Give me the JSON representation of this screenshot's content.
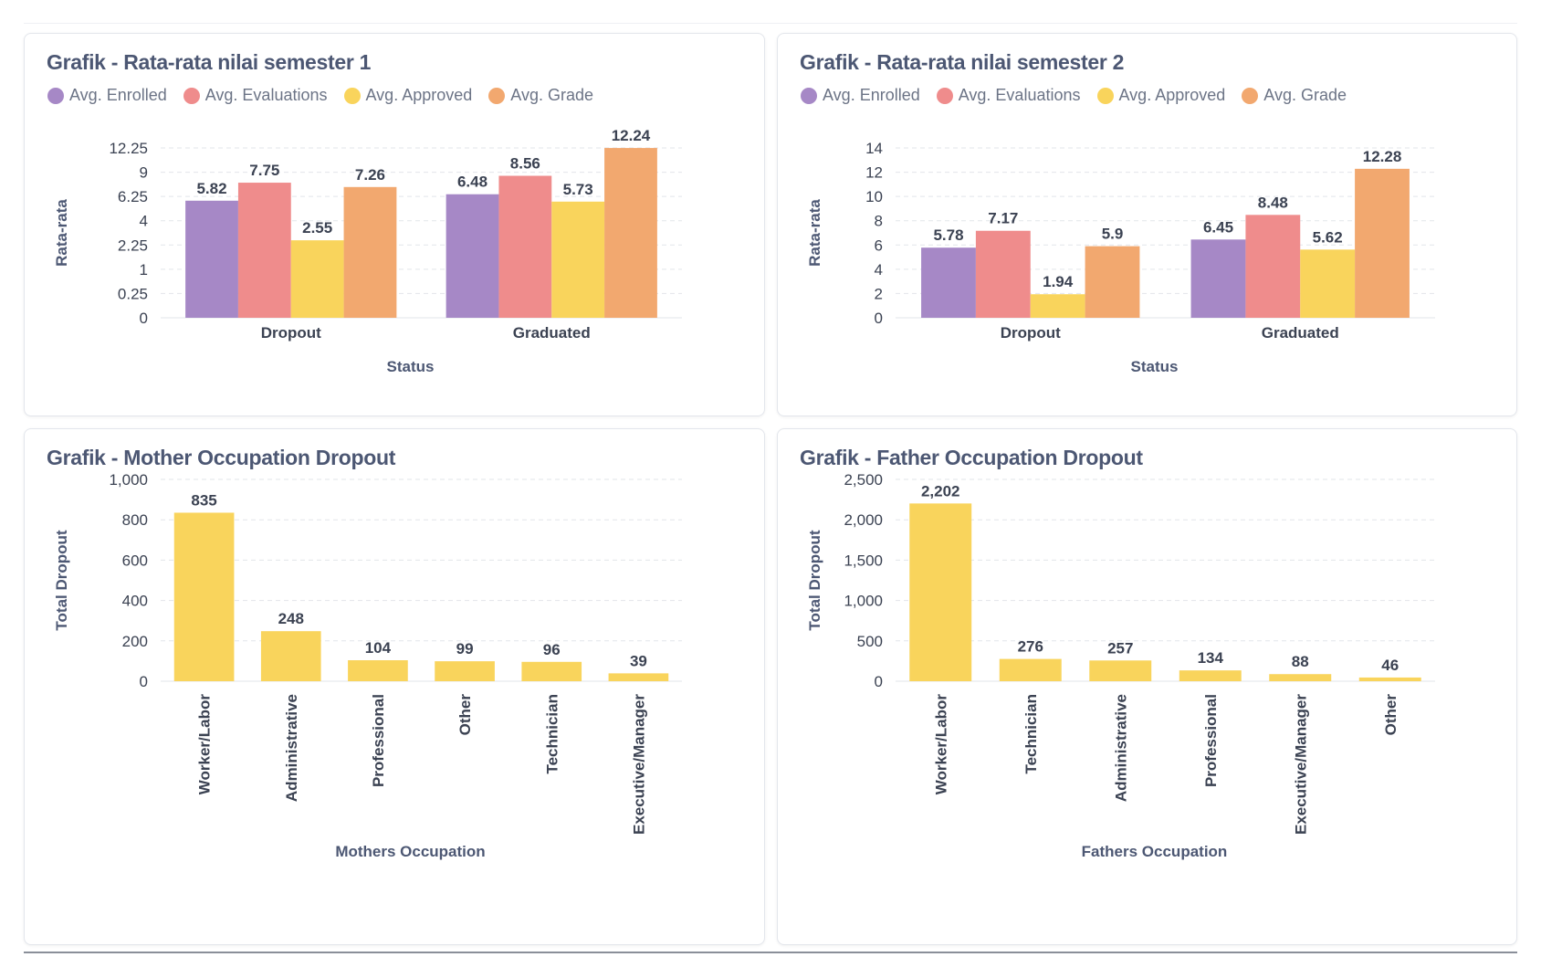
{
  "colors": {
    "enrolled": "#a688c6",
    "evaluations": "#ef8c8c",
    "approved": "#f9d45c",
    "grade": "#f2a86f",
    "gold": "#f9d45c",
    "grid": "#e2e5ea",
    "text": "#4c5773",
    "label": "#3b4252"
  },
  "cards": [
    {
      "title": "Grafik - Rata-rata nilai semester 1",
      "legend": [
        {
          "label": "Avg. Enrolled",
          "color_key": "enrolled"
        },
        {
          "label": "Avg. Evaluations",
          "color_key": "evaluations"
        },
        {
          "label": "Avg. Approved",
          "color_key": "approved"
        },
        {
          "label": "Avg. Grade",
          "color_key": "grade"
        }
      ]
    },
    {
      "title": "Grafik - Rata-rata nilai semester 2",
      "legend": [
        {
          "label": "Avg. Enrolled",
          "color_key": "enrolled"
        },
        {
          "label": "Avg. Evaluations",
          "color_key": "evaluations"
        },
        {
          "label": "Avg. Approved",
          "color_key": "approved"
        },
        {
          "label": "Avg. Grade",
          "color_key": "grade"
        }
      ]
    },
    {
      "title": "Grafik - Mother Occupation Dropout"
    },
    {
      "title": "Grafik - Father Occupation Dropout"
    }
  ],
  "chart_data": [
    {
      "type": "bar",
      "title": "Grafik - Rata-rata nilai semester 1",
      "xlabel": "Status",
      "ylabel": "Rata-rata",
      "y_scale": "pow",
      "categories": [
        "Dropout",
        "Graduated"
      ],
      "series": [
        {
          "name": "Avg. Enrolled",
          "values": [
            5.82,
            6.48
          ],
          "labels": [
            "5.82",
            "6.48"
          ]
        },
        {
          "name": "Avg. Evaluations",
          "values": [
            7.75,
            8.56
          ],
          "labels": [
            "7.75",
            "8.56"
          ]
        },
        {
          "name": "Avg. Approved",
          "values": [
            2.55,
            5.73
          ],
          "labels": [
            "2.55",
            "5.73"
          ]
        },
        {
          "name": "Avg. Grade",
          "values": [
            7.26,
            12.24
          ],
          "labels": [
            "7.26",
            "12.24"
          ]
        }
      ],
      "yticks": [
        0,
        0.25,
        1,
        2.25,
        4,
        6.25,
        9,
        12.25
      ],
      "ytick_labels": [
        "0",
        "0.25",
        "1",
        "2.25",
        "4",
        "6.25",
        "9",
        "12.25"
      ],
      "ylim": [
        0,
        12.25
      ],
      "grid": true,
      "legend": "top-left"
    },
    {
      "type": "bar",
      "title": "Grafik - Rata-rata nilai semester 2",
      "xlabel": "Status",
      "ylabel": "Rata-rata",
      "y_scale": "linear",
      "categories": [
        "Dropout",
        "Graduated"
      ],
      "series": [
        {
          "name": "Avg. Enrolled",
          "values": [
            5.78,
            6.45
          ],
          "labels": [
            "5.78",
            "6.45"
          ]
        },
        {
          "name": "Avg. Evaluations",
          "values": [
            7.17,
            8.48
          ],
          "labels": [
            "7.17",
            "8.48"
          ]
        },
        {
          "name": "Avg. Approved",
          "values": [
            1.94,
            5.62
          ],
          "labels": [
            "1.94",
            "5.62"
          ]
        },
        {
          "name": "Avg. Grade",
          "values": [
            5.9,
            12.28
          ],
          "labels": [
            "5.9",
            "12.28"
          ]
        }
      ],
      "yticks": [
        0,
        2,
        4,
        6,
        8,
        10,
        12,
        14
      ],
      "ytick_labels": [
        "0",
        "2",
        "4",
        "6",
        "8",
        "10",
        "12",
        "14"
      ],
      "ylim": [
        0,
        14
      ],
      "grid": true,
      "legend": "top-left"
    },
    {
      "type": "bar",
      "title": "Grafik - Mother Occupation Dropout",
      "xlabel": "Mothers Occupation",
      "ylabel": "Total Dropout",
      "y_scale": "linear",
      "categories": [
        "Worker/Labor",
        "Administrative",
        "Professional",
        "Other",
        "Technician",
        "Executive/Manager"
      ],
      "values": [
        835,
        248,
        104,
        99,
        96,
        39
      ],
      "labels": [
        "835",
        "248",
        "104",
        "99",
        "96",
        "39"
      ],
      "yticks": [
        0,
        200,
        400,
        600,
        800,
        1000
      ],
      "ytick_labels": [
        "0",
        "200",
        "400",
        "600",
        "800",
        "1,000"
      ],
      "ylim": [
        0,
        1000
      ],
      "grid": true
    },
    {
      "type": "bar",
      "title": "Grafik - Father Occupation Dropout",
      "xlabel": "Fathers Occupation",
      "ylabel": "Total Dropout",
      "y_scale": "linear",
      "categories": [
        "Worker/Labor",
        "Technician",
        "Administrative",
        "Professional",
        "Executive/Manager",
        "Other"
      ],
      "values": [
        2202,
        276,
        257,
        134,
        88,
        46
      ],
      "labels": [
        "2,202",
        "276",
        "257",
        "134",
        "88",
        "46"
      ],
      "yticks": [
        0,
        500,
        1000,
        1500,
        2000,
        2500
      ],
      "ytick_labels": [
        "0",
        "500",
        "1,000",
        "1,500",
        "2,000",
        "2,500"
      ],
      "ylim": [
        0,
        2500
      ],
      "grid": true
    }
  ]
}
